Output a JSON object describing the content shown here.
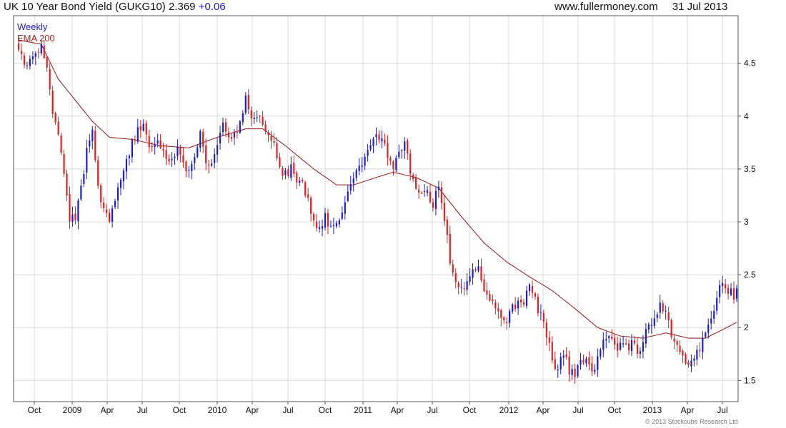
{
  "header": {
    "title": "UK 10 Year Bond Yield (GUKG10)",
    "last": "2.369",
    "change": "+0.06",
    "site": "www.fullermoney.com",
    "date": "31 Jul 2013"
  },
  "legend": {
    "weekly": "Weekly",
    "ema": "EMA 200"
  },
  "footer": {
    "copyright": "© 2013 Stockcube Research Ltd"
  },
  "colors": {
    "up": "#1c1cd0",
    "down": "#e02020",
    "ema": "#9a2a2a",
    "grid": "#d8d8d8",
    "frame": "#555555"
  },
  "chart_data": {
    "type": "candlestick",
    "frequency": "weekly",
    "ylim": [
      1.3,
      4.95
    ],
    "y_ticks": [
      {
        "value": 1.5,
        "label": "1.5"
      },
      {
        "value": 2,
        "label": "2"
      },
      {
        "value": 2.5,
        "label": "2.5"
      },
      {
        "value": 3,
        "label": "3"
      },
      {
        "value": 3.5,
        "label": "3.5"
      },
      {
        "value": 4,
        "label": "4"
      },
      {
        "value": 4.5,
        "label": "4.5"
      }
    ],
    "x_ticks": [
      "Oct",
      "2009",
      "Apr",
      "Jul",
      "Oct",
      "2010",
      "Apr",
      "Jul",
      "Oct",
      "2011",
      "Apr",
      "Jul",
      "Oct",
      "2012",
      "Apr",
      "Jul",
      "Oct",
      "2013",
      "Apr",
      "Jul"
    ],
    "price_keypoints": [
      [
        0,
        4.62
      ],
      [
        3,
        4.48
      ],
      [
        6,
        4.62
      ],
      [
        8,
        4.65
      ],
      [
        10,
        4.5
      ],
      [
        12,
        4.05
      ],
      [
        14,
        3.85
      ],
      [
        16,
        3.45
      ],
      [
        18,
        3.05
      ],
      [
        20,
        3.05
      ],
      [
        22,
        3.3
      ],
      [
        24,
        3.65
      ],
      [
        26,
        3.9
      ],
      [
        28,
        3.3
      ],
      [
        30,
        3.1
      ],
      [
        32,
        3.0
      ],
      [
        34,
        3.2
      ],
      [
        36,
        3.4
      ],
      [
        38,
        3.55
      ],
      [
        40,
        3.75
      ],
      [
        42,
        3.85
      ],
      [
        44,
        3.95
      ],
      [
        46,
        3.7
      ],
      [
        48,
        3.75
      ],
      [
        50,
        3.7
      ],
      [
        52,
        3.6
      ],
      [
        54,
        3.55
      ],
      [
        56,
        3.7
      ],
      [
        58,
        3.55
      ],
      [
        60,
        3.5
      ],
      [
        62,
        3.6
      ],
      [
        64,
        3.85
      ],
      [
        66,
        3.6
      ],
      [
        68,
        3.55
      ],
      [
        70,
        3.75
      ],
      [
        72,
        3.95
      ],
      [
        74,
        3.85
      ],
      [
        76,
        3.8
      ],
      [
        78,
        3.95
      ],
      [
        80,
        4.2
      ],
      [
        82,
        4.0
      ],
      [
        84,
        3.95
      ],
      [
        86,
        3.95
      ],
      [
        88,
        3.85
      ],
      [
        90,
        3.75
      ],
      [
        92,
        3.5
      ],
      [
        94,
        3.45
      ],
      [
        96,
        3.5
      ],
      [
        98,
        3.35
      ],
      [
        100,
        3.35
      ],
      [
        102,
        3.2
      ],
      [
        104,
        3.0
      ],
      [
        106,
        2.9
      ],
      [
        108,
        3.05
      ],
      [
        110,
        2.95
      ],
      [
        112,
        2.95
      ],
      [
        114,
        3.1
      ],
      [
        116,
        3.3
      ],
      [
        118,
        3.4
      ],
      [
        120,
        3.5
      ],
      [
        122,
        3.65
      ],
      [
        124,
        3.75
      ],
      [
        126,
        3.85
      ],
      [
        128,
        3.8
      ],
      [
        130,
        3.65
      ],
      [
        132,
        3.55
      ],
      [
        134,
        3.65
      ],
      [
        136,
        3.75
      ],
      [
        138,
        3.5
      ],
      [
        140,
        3.35
      ],
      [
        142,
        3.25
      ],
      [
        144,
        3.3
      ],
      [
        146,
        3.15
      ],
      [
        148,
        3.35
      ],
      [
        150,
        3.05
      ],
      [
        152,
        2.65
      ],
      [
        154,
        2.45
      ],
      [
        156,
        2.35
      ],
      [
        158,
        2.45
      ],
      [
        160,
        2.55
      ],
      [
        162,
        2.6
      ],
      [
        164,
        2.35
      ],
      [
        166,
        2.25
      ],
      [
        168,
        2.2
      ],
      [
        170,
        2.05
      ],
      [
        172,
        2.05
      ],
      [
        174,
        2.2
      ],
      [
        176,
        2.25
      ],
      [
        178,
        2.2
      ],
      [
        180,
        2.45
      ],
      [
        182,
        2.25
      ],
      [
        184,
        2.1
      ],
      [
        186,
        1.95
      ],
      [
        188,
        1.7
      ],
      [
        190,
        1.6
      ],
      [
        192,
        1.75
      ],
      [
        194,
        1.6
      ],
      [
        196,
        1.55
      ],
      [
        198,
        1.65
      ],
      [
        200,
        1.7
      ],
      [
        202,
        1.55
      ],
      [
        204,
        1.75
      ],
      [
        206,
        1.85
      ],
      [
        208,
        1.95
      ],
      [
        210,
        1.8
      ],
      [
        212,
        1.85
      ],
      [
        214,
        1.8
      ],
      [
        216,
        1.85
      ],
      [
        218,
        1.8
      ],
      [
        220,
        1.85
      ],
      [
        222,
        2.05
      ],
      [
        224,
        2.05
      ],
      [
        226,
        2.2
      ],
      [
        228,
        2.2
      ],
      [
        230,
        1.95
      ],
      [
        232,
        1.85
      ],
      [
        234,
        1.75
      ],
      [
        236,
        1.65
      ],
      [
        238,
        1.7
      ],
      [
        240,
        1.8
      ],
      [
        242,
        1.95
      ],
      [
        244,
        2.05
      ],
      [
        246,
        2.3
      ],
      [
        248,
        2.45
      ],
      [
        250,
        2.35
      ],
      [
        252,
        2.3
      ],
      [
        253,
        2.37
      ]
    ],
    "ema_keypoints": [
      [
        0,
        4.72
      ],
      [
        8,
        4.68
      ],
      [
        14,
        4.35
      ],
      [
        20,
        4.15
      ],
      [
        26,
        3.95
      ],
      [
        32,
        3.8
      ],
      [
        40,
        3.78
      ],
      [
        50,
        3.72
      ],
      [
        60,
        3.7
      ],
      [
        70,
        3.8
      ],
      [
        80,
        3.88
      ],
      [
        86,
        3.88
      ],
      [
        94,
        3.72
      ],
      [
        104,
        3.5
      ],
      [
        112,
        3.35
      ],
      [
        118,
        3.35
      ],
      [
        126,
        3.42
      ],
      [
        132,
        3.47
      ],
      [
        140,
        3.42
      ],
      [
        148,
        3.32
      ],
      [
        156,
        3.05
      ],
      [
        164,
        2.8
      ],
      [
        172,
        2.62
      ],
      [
        180,
        2.48
      ],
      [
        188,
        2.35
      ],
      [
        196,
        2.18
      ],
      [
        204,
        2.0
      ],
      [
        212,
        1.92
      ],
      [
        220,
        1.9
      ],
      [
        228,
        1.95
      ],
      [
        236,
        1.9
      ],
      [
        242,
        1.9
      ],
      [
        248,
        1.98
      ],
      [
        253,
        2.05
      ]
    ],
    "legend": [
      "Weekly",
      "EMA 200"
    ],
    "legend_placement": "top-left",
    "y_axis_side": "right",
    "grid": true
  }
}
